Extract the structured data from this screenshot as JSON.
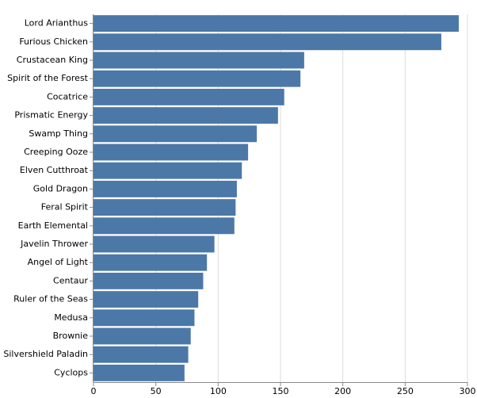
{
  "chart_data": {
    "type": "bar",
    "orientation": "horizontal",
    "categories": [
      "Lord Arianthus",
      "Furious Chicken",
      "Crustacean King",
      "Spirit of the Forest",
      "Cocatrice",
      "Prismatic Energy",
      "Swamp Thing",
      "Creeping Ooze",
      "Elven Cutthroat",
      "Gold Dragon",
      "Feral Spirit",
      "Earth Elemental",
      "Javelin Thrower",
      "Angel of Light",
      "Centaur",
      "Ruler of the Seas",
      "Medusa",
      "Brownie",
      "Silvershield Paladin",
      "Cyclops"
    ],
    "values": [
      293,
      279,
      169,
      166,
      153,
      148,
      131,
      124,
      119,
      115,
      114,
      113,
      97,
      91,
      88,
      84,
      81,
      78,
      76,
      73
    ],
    "color": "#4c78a8",
    "xlim": [
      0,
      300
    ],
    "xticks": [
      0,
      50,
      100,
      150,
      200,
      250,
      300
    ],
    "grid": true
  }
}
